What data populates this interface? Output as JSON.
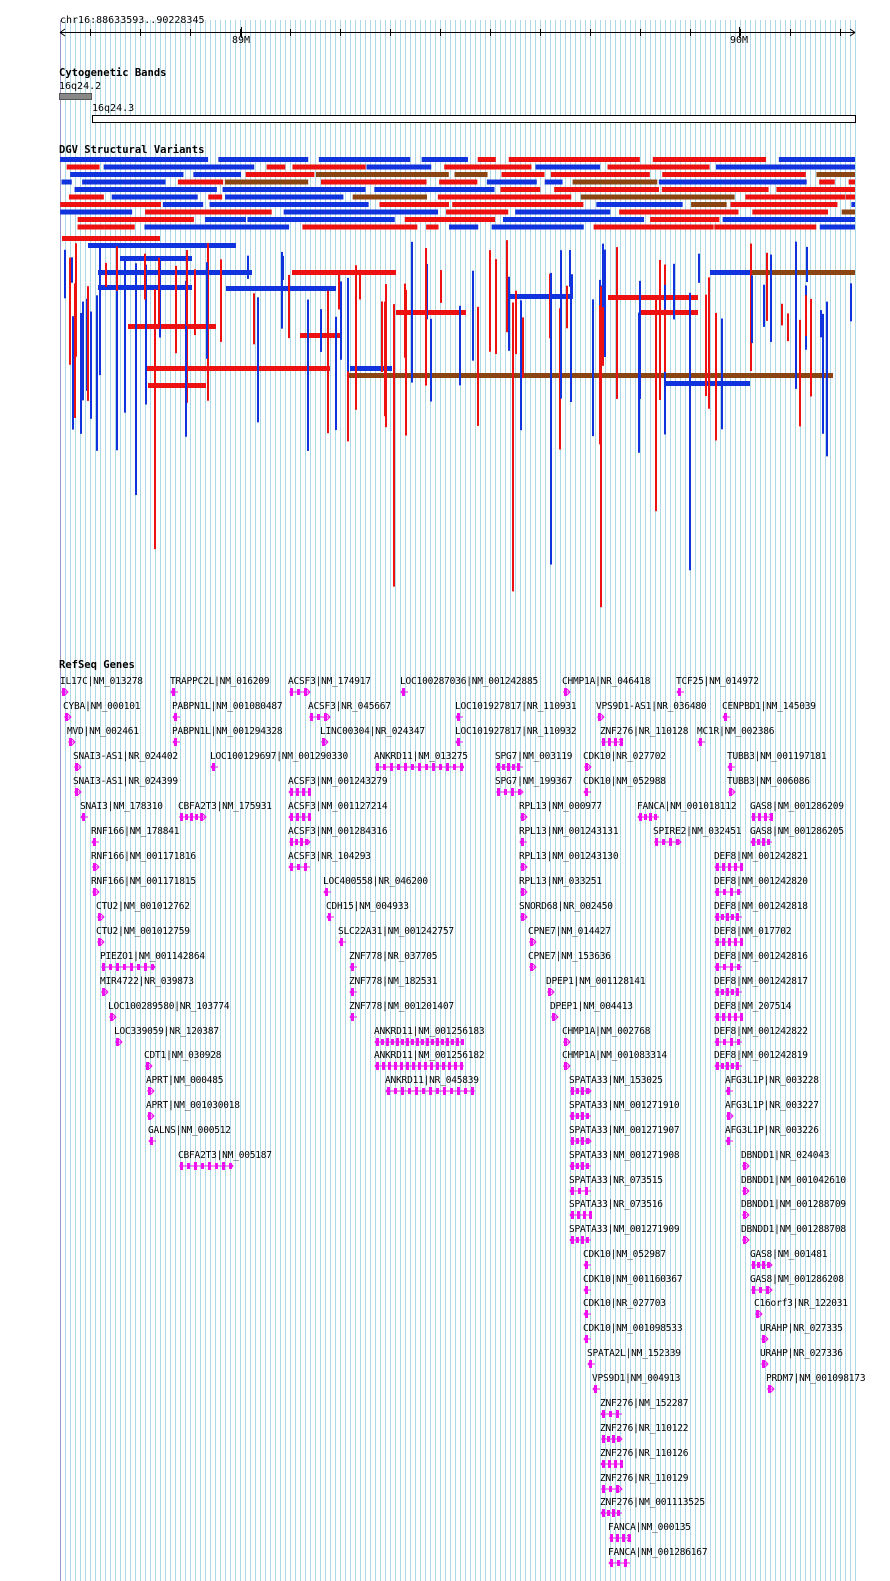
{
  "ruler": {
    "locus": "chr16:88633593..90228345",
    "ticks": [
      {
        "label": "89M"
      },
      {
        "label": "90M"
      }
    ]
  },
  "cytobands": {
    "title": "Cytogenetic Bands",
    "band_a": "16q24.2",
    "band_b": "16q24.3"
  },
  "dgv": {
    "title": "DGV Structural Variants",
    "colors": {
      "loss": "#ee1111",
      "gain": "#1133dd",
      "both": "#8b4513",
      "inversion": "#000000"
    }
  },
  "refseq": {
    "title": "RefSeq Genes",
    "gene_color": "#ee11ee",
    "genes": [
      "IL17C|NM_013278",
      "TRAPPC2L|NM_016209",
      "ACSF3|NM_174917",
      "LOC100287036|NM_001242885",
      "CHMP1A|NR_046418",
      "TCF25|NM_014972",
      "CYBA|NM_000101",
      "PABPN1L|NM_001080487",
      "ACSF3|NR_045667",
      "LOC101927817|NR_110931",
      "VPS9D1-AS1|NR_036480",
      "CENPBD1|NM_145039",
      "MVD|NM_002461",
      "PABPN1L|NM_001294328",
      "LINC00304|NR_024347",
      "LOC101927817|NR_110932",
      "ZNF276|NR_110128",
      "MC1R|NM_002386",
      "SNAI3-AS1|NR_024402",
      "LOC100129697|NM_001290330",
      "ANKRD11|NM_013275",
      "SPG7|NM_003119",
      "CDK10|NR_027702",
      "TUBB3|NM_001197181",
      "SNAI3-AS1|NR_024399",
      "ACSF3|NM_001243279",
      "SPG7|NM_199367",
      "CDK10|NM_052988",
      "TUBB3|NM_006086",
      "SNAI3|NM_178310",
      "CBFA2T3|NM_175931",
      "ACSF3|NM_001127214",
      "RPL13|NM_000977",
      "FANCA|NM_001018112",
      "GAS8|NM_001286209",
      "RNF166|NM_178841",
      "ACSF3|NM_001284316",
      "RPL13|NM_001243131",
      "SPIRE2|NM_032451",
      "GAS8|NM_001286205",
      "RNF166|NM_001171816",
      "ACSF3|NR_104293",
      "RPL13|NM_001243130",
      "DEF8|NM_001242821",
      "RNF166|NM_001171815",
      "LOC400558|NR_046200",
      "RPL13|NM_033251",
      "DEF8|NM_001242820",
      "CTU2|NM_001012762",
      "CDH15|NM_004933",
      "SNORD68|NR_002450",
      "DEF8|NM_001242818",
      "CTU2|NM_001012759",
      "SLC22A31|NM_001242757",
      "CPNE7|NM_014427",
      "DEF8|NM_017702",
      "PIEZO1|NM_001142864",
      "ZNF778|NR_037705",
      "CPNE7|NM_153636",
      "DEF8|NM_001242816",
      "MIR4722|NR_039873",
      "ZNF778|NM_182531",
      "DPEP1|NM_001128141",
      "DEF8|NM_001242817",
      "LOC100289580|NR_103774",
      "ZNF778|NM_001201407",
      "DPEP1|NM_004413",
      "DEF8|NM_207514",
      "LOC339059|NR_120387",
      "ANKRD11|NM_001256183",
      "CHMP1A|NM_002768",
      "DEF8|NM_001242822",
      "CDT1|NM_030928",
      "ANKRD11|NM_001256182",
      "CHMP1A|NM_001083314",
      "DEF8|NM_001242819",
      "APRT|NM_000485",
      "ANKRD11|NR_045839",
      "SPATA33|NM_153025",
      "AFG3L1P|NR_003228",
      "APRT|NM_001030018",
      "SPATA33|NM_001271910",
      "AFG3L1P|NR_003227",
      "GALNS|NM_000512",
      "SPATA33|NM_001271907",
      "AFG3L1P|NR_003226",
      "CBFA2T3|NM_005187",
      "SPATA33|NM_001271908",
      "DBNDD1|NR_024043",
      "SPATA33|NR_073515",
      "DBNDD1|NM_001042610",
      "SPATA33|NR_073516",
      "DBNDD1|NM_001288709",
      "SPATA33|NM_001271909",
      "DBNDD1|NM_001288708",
      "CDK10|NM_052987",
      "GAS8|NM_001481",
      "CDK10|NM_001160367",
      "GAS8|NM_001286208",
      "CDK10|NR_027703",
      "C16orf3|NR_122031",
      "CDK10|NM_001098533",
      "URAHP|NR_027335",
      "SPATA2L|NM_152339",
      "URAHP|NR_027336",
      "VPS9D1|NM_004913",
      "PRDM7|NM_001098173",
      "ZNF276|NM_152287",
      "ZNF276|NR_110122",
      "ZNF276|NR_110126",
      "ZNF276|NR_110129",
      "ZNF276|NM_001113525",
      "FANCA|NM_000135",
      "FANCA|NM_001286167"
    ]
  }
}
